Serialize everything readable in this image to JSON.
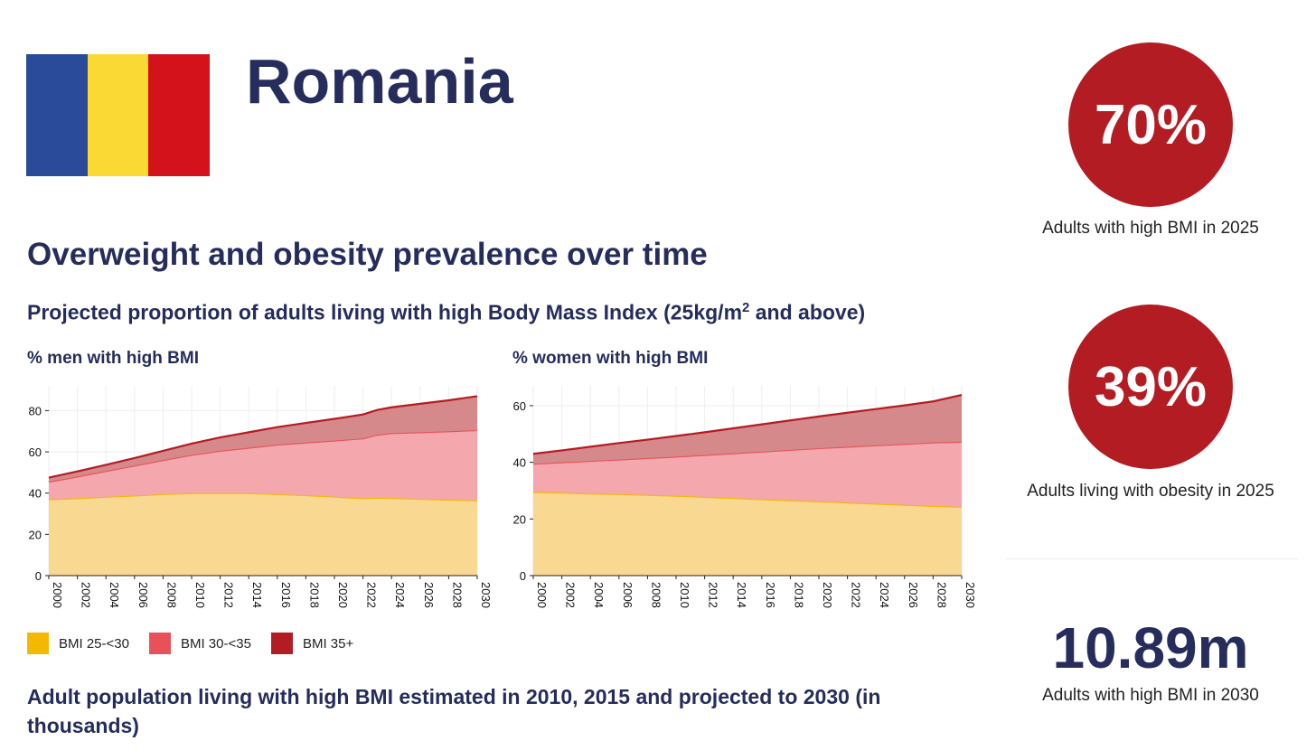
{
  "country": "Romania",
  "flag_colors": [
    "#2a4a9a",
    "#fbd935",
    "#d3121c"
  ],
  "colors": {
    "bmi_25_30": "#f5b800",
    "bmi_30_35": "#e7525a",
    "bmi_35_plus": "#b41c24",
    "circle": "#b41c24",
    "navy": "#262d5c"
  },
  "section_title": "Overweight and obesity prevalence over time",
  "chart_subtitle_main": "Projected proportion of adults living with high Body Mass Index (25kg/m",
  "chart_subtitle_sup": "2",
  "chart_subtitle_end": " and above)",
  "legend": [
    {
      "label": "BMI 25-<30",
      "color": "#f5b800"
    },
    {
      "label": "BMI 30-<35",
      "color": "#e7525a"
    },
    {
      "label": "BMI 35+",
      "color": "#b41c24"
    }
  ],
  "bottom_title": "Adult population living with high BMI estimated in 2010, 2015 and projected to 2030 (in thousands)",
  "stats": {
    "high_bmi_2025": {
      "value": "70%",
      "label": "Adults with high BMI in 2025"
    },
    "obesity_2025": {
      "value": "39%",
      "label": "Adults living with obesity in 2025"
    },
    "high_bmi_2030": {
      "value": "10.89m",
      "label": "Adults with high BMI in 2030"
    }
  },
  "chart_data": [
    {
      "type": "area",
      "stacked": true,
      "title": "% men with high BMI",
      "x": [
        2000,
        2002,
        2004,
        2006,
        2008,
        2010,
        2012,
        2014,
        2016,
        2018,
        2020,
        2022,
        2023,
        2024,
        2026,
        2028,
        2030
      ],
      "xticks": [
        2000,
        2002,
        2004,
        2006,
        2008,
        2010,
        2012,
        2014,
        2016,
        2018,
        2020,
        2022,
        2024,
        2026,
        2028,
        2030
      ],
      "yticks": [
        0,
        20,
        40,
        60,
        80
      ],
      "ylim": [
        0,
        92
      ],
      "series": [
        {
          "name": "BMI 25-<30",
          "values": [
            37,
            37.5,
            38.2,
            38.8,
            39.5,
            40,
            40,
            40,
            39.5,
            39,
            38.3,
            37.5,
            37.8,
            37.6,
            37.2,
            36.8,
            36.5
          ]
        },
        {
          "name": "BMI 30-<35",
          "values": [
            8.5,
            10.5,
            12.5,
            14.5,
            16.5,
            18.5,
            20.5,
            22,
            24,
            25.5,
            27.2,
            29,
            30.5,
            31.5,
            32.3,
            33.2,
            34
          ]
        },
        {
          "name": "BMI 35+",
          "values": [
            2,
            2.5,
            3,
            3.7,
            4.5,
            5.5,
            6.5,
            7.5,
            8.5,
            9.5,
            10.5,
            11.6,
            12,
            12.5,
            13.8,
            15,
            16.5
          ]
        }
      ],
      "legend_position": "bottom-left"
    },
    {
      "type": "area",
      "stacked": true,
      "title": "% women with high BMI",
      "x": [
        2000,
        2002,
        2004,
        2006,
        2008,
        2010,
        2012,
        2014,
        2016,
        2018,
        2020,
        2022,
        2024,
        2026,
        2028,
        2030
      ],
      "xticks": [
        2000,
        2002,
        2004,
        2006,
        2008,
        2010,
        2012,
        2014,
        2016,
        2018,
        2020,
        2022,
        2024,
        2026,
        2028,
        2030
      ],
      "yticks": [
        0,
        20,
        40,
        60
      ],
      "ylim": [
        0,
        67
      ],
      "series": [
        {
          "name": "BMI 25-<30",
          "values": [
            29.5,
            29.3,
            29,
            28.8,
            28.5,
            28.2,
            27.8,
            27.4,
            27,
            26.6,
            26.2,
            25.8,
            25.4,
            25,
            24.6,
            24.3
          ]
        },
        {
          "name": "BMI 30-<35",
          "values": [
            10,
            10.7,
            11.5,
            12.2,
            13,
            13.8,
            14.8,
            15.8,
            16.8,
            17.8,
            18.8,
            19.7,
            20.6,
            21.5,
            22.4,
            23
          ]
        },
        {
          "name": "BMI 35+",
          "values": [
            3.5,
            4.2,
            5,
            5.8,
            6.5,
            7.3,
            8,
            8.8,
            9.6,
            10.4,
            11.2,
            12,
            12.8,
            13.6,
            14.5,
            16.5
          ]
        }
      ],
      "legend_position": "bottom-left"
    }
  ]
}
